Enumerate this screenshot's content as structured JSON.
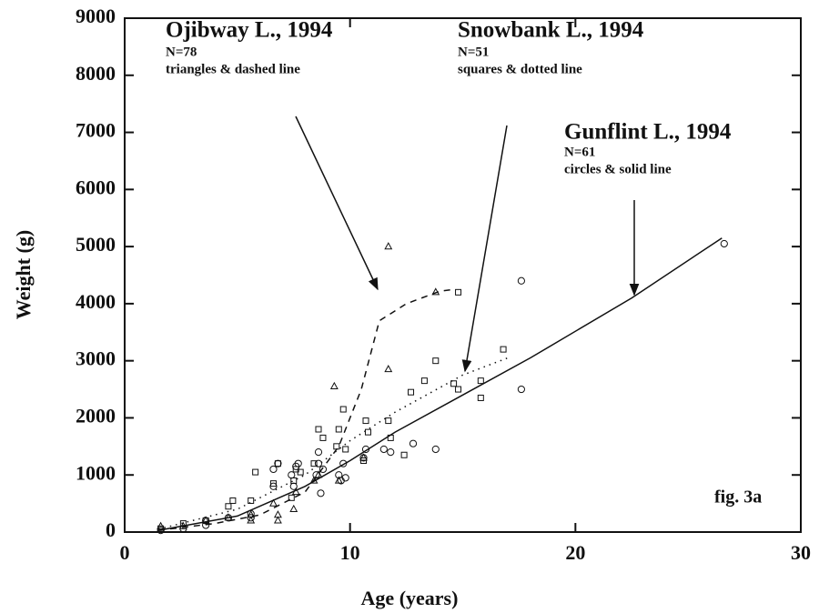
{
  "chart_data": {
    "type": "scatter",
    "xlabel": "Age (years)",
    "ylabel": "Weight (g)",
    "xlim": [
      0,
      30
    ],
    "ylim": [
      0,
      9000
    ],
    "xticks": [
      0,
      10,
      20,
      30
    ],
    "yticks": [
      0,
      1000,
      2000,
      3000,
      4000,
      5000,
      6000,
      7000,
      8000,
      9000
    ],
    "annotations": [
      {
        "title": "Ojibway L., 1994",
        "n": "N=78",
        "desc": "triangles & dashed line"
      },
      {
        "title": "Snowbank L., 1994",
        "n": "N=51",
        "desc": "squares & dotted line"
      },
      {
        "title": "Gunflint L., 1994",
        "n": "N=61",
        "desc": "circles & solid line"
      }
    ],
    "figure_label": "fig. 3a",
    "series": [
      {
        "marker": "triangle",
        "line_style": "dashed",
        "color": "#111",
        "x": [
          1.6,
          2.6,
          3.6,
          4.6,
          5.6,
          5.6,
          6.6,
          6.8,
          6.8,
          7.5,
          7.6,
          8.4,
          8.6,
          9.3,
          9.5,
          10.6,
          11.7,
          11.7,
          13.8
        ],
        "values": [
          100,
          100,
          200,
          250,
          200,
          300,
          500,
          300,
          200,
          400,
          700,
          900,
          1000,
          2550,
          900,
          1300,
          5000,
          2850,
          4200
        ],
        "fit_x": [
          1.5,
          4,
          6,
          8,
          9.5,
          10.5,
          11.3,
          12.5,
          14,
          14.6
        ],
        "fit_values": [
          30,
          150,
          300,
          700,
          1500,
          2500,
          3700,
          4000,
          4220,
          4250
        ]
      },
      {
        "marker": "square",
        "line_style": "dotted",
        "color": "#111",
        "x": [
          1.6,
          2.6,
          3.6,
          4.6,
          4.8,
          5.6,
          5.8,
          6.6,
          6.8,
          7.4,
          7.5,
          7.6,
          7.8,
          8.4,
          8.6,
          8.8,
          9.4,
          9.5,
          9.7,
          9.8,
          10.6,
          10.7,
          10.8,
          11.7,
          11.8,
          12.4,
          12.7,
          13.3,
          13.8,
          14.6,
          14.8,
          14.8,
          15.8,
          15.8,
          16.8
        ],
        "values": [
          60,
          150,
          200,
          450,
          550,
          550,
          1050,
          850,
          1200,
          600,
          900,
          1100,
          1050,
          1200,
          1800,
          1650,
          1500,
          1800,
          2150,
          1450,
          1250,
          1950,
          1750,
          1950,
          1650,
          1350,
          2450,
          2650,
          3000,
          2600,
          2500,
          4200,
          2650,
          2350,
          3200
        ],
        "fit_x": [
          1.5,
          5,
          8,
          10,
          12,
          15,
          17
        ],
        "fit_values": [
          50,
          400,
          1000,
          1600,
          2100,
          2750,
          3050
        ]
      },
      {
        "marker": "circle",
        "line_style": "solid",
        "color": "#111",
        "x": [
          1.6,
          2.6,
          3.6,
          3.6,
          4.6,
          5.6,
          5.6,
          6.6,
          6.6,
          6.8,
          7.4,
          7.5,
          7.6,
          7.7,
          8.5,
          8.6,
          8.6,
          8.7,
          8.8,
          9.5,
          9.6,
          9.7,
          9.8,
          10.6,
          10.7,
          11.5,
          11.8,
          12.8,
          13.8,
          17.6,
          17.6,
          26.6
        ],
        "values": [
          30,
          60,
          120,
          200,
          250,
          250,
          320,
          800,
          1100,
          1200,
          1000,
          800,
          1150,
          1200,
          1000,
          1400,
          1200,
          680,
          1100,
          1000,
          900,
          1200,
          950,
          1300,
          1450,
          1450,
          1400,
          1550,
          1450,
          4400,
          2500,
          5050
        ],
        "fit_x": [
          1.5,
          5,
          8,
          10,
          12,
          15,
          18,
          22.5,
          26.5
        ],
        "fit_values": [
          30,
          280,
          800,
          1250,
          1750,
          2400,
          3050,
          4100,
          5150
        ]
      }
    ]
  }
}
